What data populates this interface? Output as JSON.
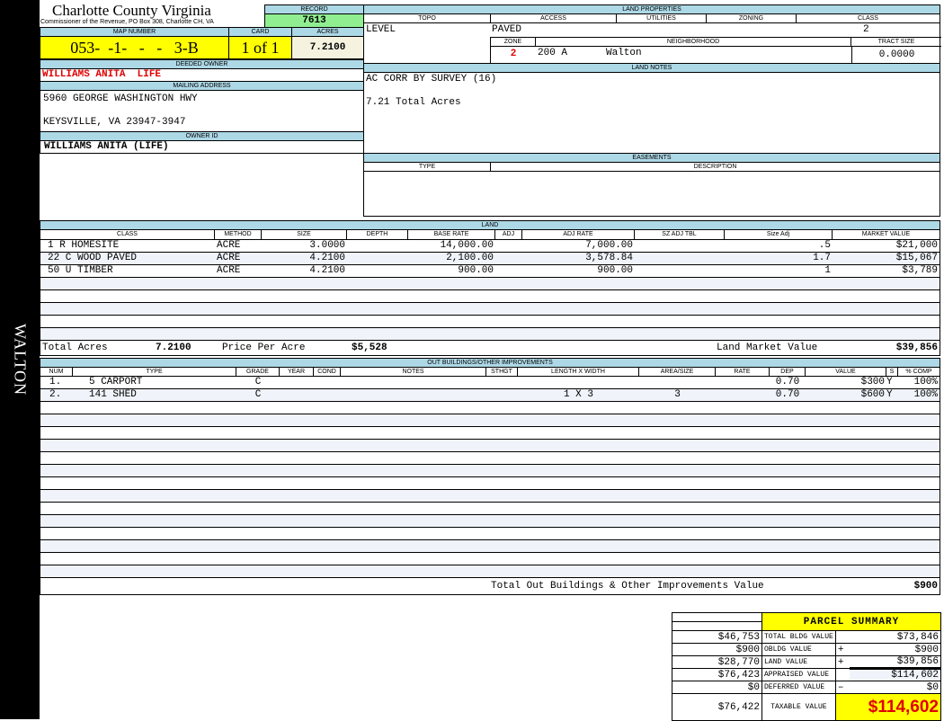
{
  "side_label": "WALTON",
  "header": {
    "title": "Charlotte County Virginia",
    "subtitle": "Commissioner of the Revenue, PO Box 308, Charlotte CH, VA"
  },
  "record": {
    "label": "RECORD",
    "value": "7613"
  },
  "map": {
    "label": "MAP NUMBER",
    "value": "053-  -1-   -   -   3-B"
  },
  "card": {
    "label": "CARD",
    "value": "1 of 1"
  },
  "acres": {
    "label": "ACRES",
    "value": "7.2100"
  },
  "deeded_owner": {
    "label": "DEEDED OWNER",
    "value": "WILLIAMS ANITA  LIFE"
  },
  "mailing": {
    "label": "MAILING ADDRESS",
    "line1": "5960 GEORGE WASHINGTON HWY",
    "line2": "KEYSVILLE, VA 23947-3947"
  },
  "owner_id": {
    "label": "OWNER ID",
    "value": "WILLIAMS ANITA (LIFE)"
  },
  "land_properties": {
    "label": "LAND PROPERTIES",
    "topo_label": "TOPO",
    "access_label": "ACCESS",
    "utilities_label": "UTILITIES",
    "zoning_label": "ZONING",
    "class_label": "CLASS",
    "topo": "LEVEL",
    "access": "PAVED",
    "class": "2",
    "zone_label": "ZONE",
    "neighborhood_label": "NEIGHBORHOOD",
    "tract_label": "TRACT SIZE",
    "zone": "2",
    "neighborhood_code": "200 A",
    "neighborhood": "Walton",
    "tract": "0.0000"
  },
  "land_notes": {
    "label": "LAND NOTES",
    "line1": "AC CORR BY SURVEY (16)",
    "line2": "7.21 Total Acres"
  },
  "easements": {
    "label": "EASEMENTS",
    "type_label": "TYPE",
    "desc_label": "DESCRIPTION"
  },
  "land": {
    "label": "LAND",
    "columns": [
      "CLASS",
      "METHOD",
      "SIZE",
      "DEPTH",
      "BASE RATE",
      "ADJ",
      "ADJ RATE",
      "SZ ADJ TBL",
      "Size Adj",
      "MARKET VALUE"
    ],
    "rows": [
      [
        "1 R HOMESITE",
        "ACRE",
        "3.0000",
        "",
        "14,000.00",
        "",
        "7,000.00",
        "",
        ".5",
        "$21,000"
      ],
      [
        "22 C WOOD PAVED",
        "ACRE",
        "4.2100",
        "",
        "2,100.00",
        "",
        "3,578.84",
        "",
        "1.7",
        "$15,067"
      ],
      [
        "50 U TIMBER",
        "ACRE",
        "4.2100",
        "",
        "900.00",
        "",
        "900.00",
        "",
        "1",
        "$3,789"
      ]
    ],
    "total_acres_label": "Total Acres",
    "total_acres": "7.2100",
    "ppa_label": "Price Per Acre",
    "ppa": "$5,528",
    "lmv_label": "Land Market Value",
    "lmv": "$39,856"
  },
  "outbuildings": {
    "label": "OUT BUILDINGS/OTHER IMPROVEMENTS",
    "columns": [
      "NUM",
      "TYPE",
      "GRADE",
      "YEAR",
      "COND",
      "NOTES",
      "STHGT",
      "LENGTH X WIDTH",
      "AREA/SIZE",
      "RATE",
      "DEP",
      "VALUE",
      "S",
      "% COMP"
    ],
    "rows": [
      [
        "1.",
        "5 CARPORT",
        "C",
        "",
        "",
        "",
        "",
        "",
        "",
        "",
        "0.70",
        "$300",
        "Y",
        "100%"
      ],
      [
        "2.",
        "141 SHED",
        "C",
        "",
        "",
        "",
        "",
        "1 X 3",
        "3",
        "",
        "0.70",
        "$600",
        "Y",
        "100%"
      ]
    ],
    "total_label": "Total Out Buildings & Other Improvements Value",
    "total": "$900"
  },
  "summary": {
    "title": "PARCEL SUMMARY",
    "rows": [
      {
        "prior": "$46,753",
        "label": "TOTAL BLDG VALUE",
        "op": "",
        "value": "$73,846"
      },
      {
        "prior": "$900",
        "label": "OBLDG VALUE",
        "op": "+",
        "value": "$900"
      },
      {
        "prior": "$28,770",
        "label": "LAND VALUE",
        "op": "+",
        "value": "$39,856"
      },
      {
        "prior": "$76,423",
        "label": "APPRAISED VALUE",
        "op": "",
        "value": "$114,602"
      },
      {
        "prior": "$0",
        "label": "DEFERRED VALUE",
        "op": "–",
        "value": "$0"
      }
    ],
    "taxable_prior": "$76,422",
    "taxable_label": "TAXABLE VALUE",
    "taxable": "$114,602"
  },
  "colors": {
    "header_blue": "#add8e6",
    "yellow": "#ffff00",
    "green": "#90ee90",
    "red": "#e00000"
  }
}
